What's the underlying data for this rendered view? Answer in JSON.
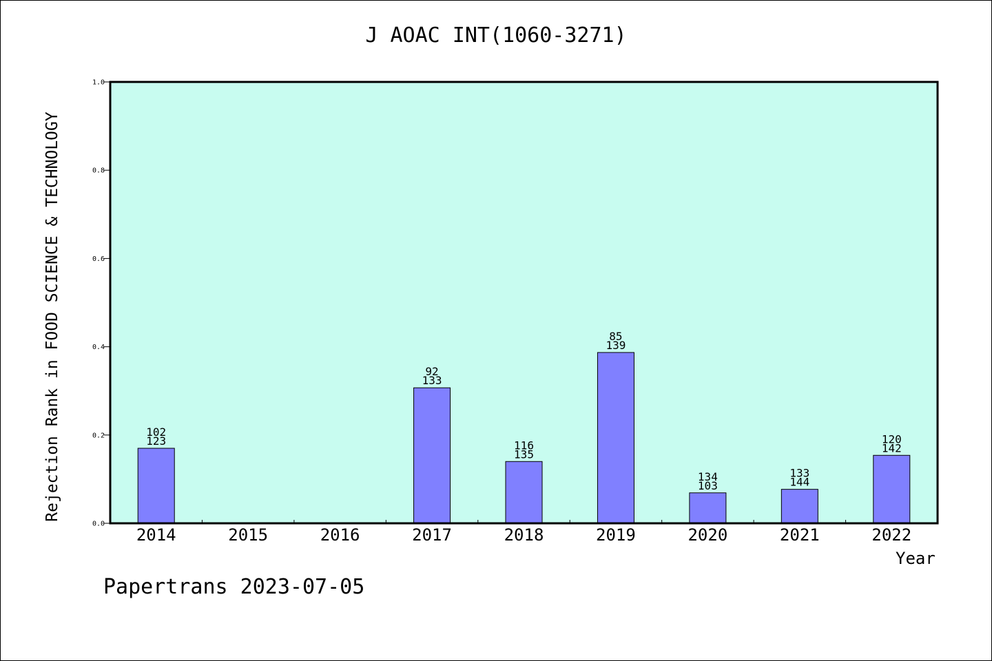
{
  "footer": "Papertrans 2023-07-05",
  "colors": {
    "plot_bg": "#c8fcf0",
    "bar": "#8080ff",
    "axis": "#000000"
  },
  "chart_data": {
    "type": "bar",
    "title": "J AOAC INT(1060-3271)",
    "xlabel": "Year",
    "ylabel": "Rejection Rank in FOOD SCIENCE & TECHNOLOGY",
    "ylim": [
      0,
      1.0
    ],
    "yticks": [
      "0.0",
      "0.2",
      "0.4",
      "0.6",
      "0.8",
      "1.0"
    ],
    "grid": false,
    "categories": [
      "2014",
      "2015",
      "2016",
      "2017",
      "2018",
      "2019",
      "2020",
      "2021",
      "2022"
    ],
    "values": [
      0.17,
      null,
      null,
      0.307,
      0.14,
      0.387,
      0.069,
      0.077,
      0.154
    ],
    "labels": [
      [
        "102",
        "123"
      ],
      null,
      null,
      [
        "92",
        "133"
      ],
      [
        "116",
        "135"
      ],
      [
        "85",
        "139"
      ],
      [
        "134",
        "103"
      ],
      [
        "133",
        "144"
      ],
      [
        "120",
        "142"
      ]
    ]
  }
}
